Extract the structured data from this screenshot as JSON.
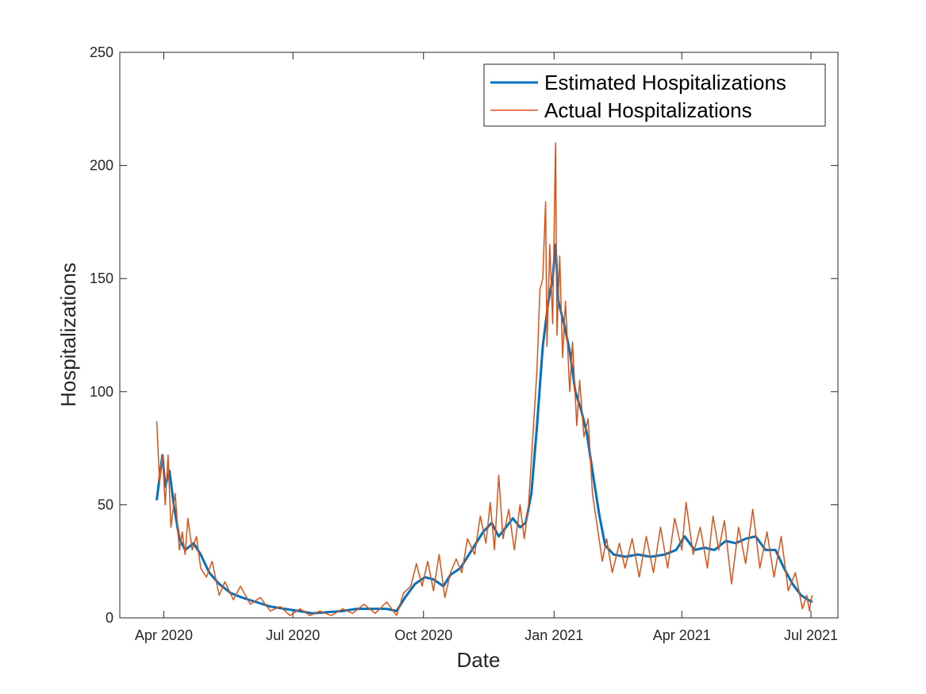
{
  "chart_data": {
    "type": "line",
    "title": "",
    "xlabel": "Date",
    "ylabel": "Hospitalizations",
    "xlim": [
      "2020-03-01",
      "2021-07-20"
    ],
    "ylim": [
      0,
      250
    ],
    "yticks": [
      0,
      50,
      100,
      150,
      200,
      250
    ],
    "xticks": [
      {
        "date": "2020-04-01",
        "label": "Apr 2020"
      },
      {
        "date": "2020-07-01",
        "label": "Jul 2020"
      },
      {
        "date": "2020-10-01",
        "label": "Oct 2020"
      },
      {
        "date": "2021-01-01",
        "label": "Jan 2021"
      },
      {
        "date": "2021-04-01",
        "label": "Apr 2021"
      },
      {
        "date": "2021-07-01",
        "label": "Jul 2021"
      }
    ],
    "grid": false,
    "box": true,
    "legend_position": "top-right",
    "series": [
      {
        "name": "Estimated Hospitalizations",
        "color": "#0072BD",
        "points": [
          [
            "2020-03-27",
            52
          ],
          [
            "2020-03-31",
            72
          ],
          [
            "2020-04-02",
            58
          ],
          [
            "2020-04-05",
            65
          ],
          [
            "2020-04-08",
            50
          ],
          [
            "2020-04-12",
            35
          ],
          [
            "2020-04-16",
            30
          ],
          [
            "2020-04-22",
            33
          ],
          [
            "2020-04-27",
            28
          ],
          [
            "2020-05-03",
            20
          ],
          [
            "2020-05-10",
            15
          ],
          [
            "2020-05-18",
            11
          ],
          [
            "2020-05-26",
            9
          ],
          [
            "2020-06-05",
            7
          ],
          [
            "2020-06-15",
            5
          ],
          [
            "2020-06-25",
            4
          ],
          [
            "2020-07-05",
            3
          ],
          [
            "2020-07-15",
            2
          ],
          [
            "2020-07-25",
            2.5
          ],
          [
            "2020-08-05",
            3
          ],
          [
            "2020-08-15",
            4
          ],
          [
            "2020-08-25",
            4
          ],
          [
            "2020-09-05",
            4
          ],
          [
            "2020-09-12",
            3
          ],
          [
            "2020-09-18",
            9
          ],
          [
            "2020-09-25",
            15
          ],
          [
            "2020-10-02",
            18
          ],
          [
            "2020-10-08",
            17
          ],
          [
            "2020-10-15",
            14
          ],
          [
            "2020-10-20",
            19
          ],
          [
            "2020-10-27",
            22
          ],
          [
            "2020-11-04",
            30
          ],
          [
            "2020-11-12",
            38
          ],
          [
            "2020-11-18",
            42
          ],
          [
            "2020-11-23",
            36
          ],
          [
            "2020-11-28",
            40
          ],
          [
            "2020-12-03",
            44
          ],
          [
            "2020-12-08",
            40
          ],
          [
            "2020-12-12",
            42
          ],
          [
            "2020-12-16",
            55
          ],
          [
            "2020-12-20",
            85
          ],
          [
            "2020-12-24",
            120
          ],
          [
            "2020-12-28",
            140
          ],
          [
            "2020-12-31",
            150
          ],
          [
            "2021-01-02",
            165
          ],
          [
            "2021-01-04",
            140
          ],
          [
            "2021-01-08",
            130
          ],
          [
            "2021-01-12",
            118
          ],
          [
            "2021-01-16",
            100
          ],
          [
            "2021-01-20",
            92
          ],
          [
            "2021-01-24",
            82
          ],
          [
            "2021-01-28",
            65
          ],
          [
            "2021-02-02",
            45
          ],
          [
            "2021-02-06",
            32
          ],
          [
            "2021-02-12",
            28
          ],
          [
            "2021-02-20",
            27
          ],
          [
            "2021-03-01",
            28
          ],
          [
            "2021-03-10",
            27
          ],
          [
            "2021-03-20",
            28
          ],
          [
            "2021-03-28",
            30
          ],
          [
            "2021-04-03",
            36
          ],
          [
            "2021-04-10",
            30
          ],
          [
            "2021-04-17",
            31
          ],
          [
            "2021-04-24",
            30
          ],
          [
            "2021-05-02",
            34
          ],
          [
            "2021-05-09",
            33
          ],
          [
            "2021-05-16",
            35
          ],
          [
            "2021-05-23",
            36
          ],
          [
            "2021-05-30",
            30
          ],
          [
            "2021-06-06",
            30
          ],
          [
            "2021-06-12",
            22
          ],
          [
            "2021-06-18",
            15
          ],
          [
            "2021-06-24",
            10
          ],
          [
            "2021-06-29",
            8
          ],
          [
            "2021-07-02",
            7
          ]
        ]
      },
      {
        "name": "Actual Hospitalizations",
        "color": "#D95319",
        "points": [
          [
            "2020-03-27",
            87
          ],
          [
            "2020-03-29",
            60
          ],
          [
            "2020-03-31",
            72
          ],
          [
            "2020-04-02",
            50
          ],
          [
            "2020-04-04",
            72
          ],
          [
            "2020-04-06",
            40
          ],
          [
            "2020-04-09",
            55
          ],
          [
            "2020-04-12",
            30
          ],
          [
            "2020-04-14",
            38
          ],
          [
            "2020-04-16",
            28
          ],
          [
            "2020-04-18",
            44
          ],
          [
            "2020-04-21",
            30
          ],
          [
            "2020-04-24",
            36
          ],
          [
            "2020-04-27",
            22
          ],
          [
            "2020-05-01",
            18
          ],
          [
            "2020-05-05",
            25
          ],
          [
            "2020-05-10",
            10
          ],
          [
            "2020-05-14",
            16
          ],
          [
            "2020-05-20",
            8
          ],
          [
            "2020-05-25",
            14
          ],
          [
            "2020-06-01",
            6
          ],
          [
            "2020-06-08",
            9
          ],
          [
            "2020-06-15",
            3
          ],
          [
            "2020-06-22",
            5
          ],
          [
            "2020-06-29",
            1
          ],
          [
            "2020-07-06",
            4
          ],
          [
            "2020-07-13",
            1
          ],
          [
            "2020-07-20",
            3
          ],
          [
            "2020-07-28",
            1
          ],
          [
            "2020-08-05",
            4
          ],
          [
            "2020-08-12",
            2
          ],
          [
            "2020-08-20",
            6
          ],
          [
            "2020-08-28",
            2
          ],
          [
            "2020-09-05",
            7
          ],
          [
            "2020-09-12",
            1
          ],
          [
            "2020-09-17",
            11
          ],
          [
            "2020-09-22",
            14
          ],
          [
            "2020-09-26",
            24
          ],
          [
            "2020-09-30",
            14
          ],
          [
            "2020-10-04",
            25
          ],
          [
            "2020-10-08",
            12
          ],
          [
            "2020-10-12",
            28
          ],
          [
            "2020-10-16",
            9
          ],
          [
            "2020-10-20",
            20
          ],
          [
            "2020-10-24",
            26
          ],
          [
            "2020-10-28",
            20
          ],
          [
            "2020-11-01",
            35
          ],
          [
            "2020-11-06",
            28
          ],
          [
            "2020-11-10",
            45
          ],
          [
            "2020-11-14",
            33
          ],
          [
            "2020-11-17",
            51
          ],
          [
            "2020-11-20",
            30
          ],
          [
            "2020-11-23",
            63
          ],
          [
            "2020-11-26",
            35
          ],
          [
            "2020-11-30",
            48
          ],
          [
            "2020-12-04",
            30
          ],
          [
            "2020-12-08",
            50
          ],
          [
            "2020-12-11",
            35
          ],
          [
            "2020-12-14",
            50
          ],
          [
            "2020-12-17",
            80
          ],
          [
            "2020-12-20",
            110
          ],
          [
            "2020-12-22",
            145
          ],
          [
            "2020-12-24",
            150
          ],
          [
            "2020-12-26",
            184
          ],
          [
            "2020-12-27",
            120
          ],
          [
            "2020-12-29",
            165
          ],
          [
            "2020-12-31",
            130
          ],
          [
            "2021-01-02",
            210
          ],
          [
            "2021-01-03",
            125
          ],
          [
            "2021-01-05",
            160
          ],
          [
            "2021-01-07",
            115
          ],
          [
            "2021-01-09",
            140
          ],
          [
            "2021-01-12",
            100
          ],
          [
            "2021-01-14",
            122
          ],
          [
            "2021-01-17",
            85
          ],
          [
            "2021-01-19",
            105
          ],
          [
            "2021-01-22",
            80
          ],
          [
            "2021-01-25",
            88
          ],
          [
            "2021-01-28",
            55
          ],
          [
            "2021-02-01",
            38
          ],
          [
            "2021-02-04",
            25
          ],
          [
            "2021-02-07",
            35
          ],
          [
            "2021-02-11",
            20
          ],
          [
            "2021-02-16",
            33
          ],
          [
            "2021-02-20",
            22
          ],
          [
            "2021-02-25",
            35
          ],
          [
            "2021-03-02",
            18
          ],
          [
            "2021-03-07",
            36
          ],
          [
            "2021-03-12",
            20
          ],
          [
            "2021-03-17",
            40
          ],
          [
            "2021-03-22",
            22
          ],
          [
            "2021-03-27",
            44
          ],
          [
            "2021-04-01",
            30
          ],
          [
            "2021-04-04",
            51
          ],
          [
            "2021-04-09",
            28
          ],
          [
            "2021-04-14",
            40
          ],
          [
            "2021-04-19",
            22
          ],
          [
            "2021-04-23",
            45
          ],
          [
            "2021-04-27",
            30
          ],
          [
            "2021-05-01",
            43
          ],
          [
            "2021-05-06",
            15
          ],
          [
            "2021-05-11",
            40
          ],
          [
            "2021-05-16",
            24
          ],
          [
            "2021-05-21",
            48
          ],
          [
            "2021-05-26",
            22
          ],
          [
            "2021-05-31",
            38
          ],
          [
            "2021-06-05",
            18
          ],
          [
            "2021-06-10",
            36
          ],
          [
            "2021-06-15",
            12
          ],
          [
            "2021-06-20",
            20
          ],
          [
            "2021-06-25",
            4
          ],
          [
            "2021-06-28",
            10
          ],
          [
            "2021-06-30",
            3
          ],
          [
            "2021-07-01",
            8
          ],
          [
            "2021-07-02",
            10
          ]
        ]
      }
    ]
  }
}
